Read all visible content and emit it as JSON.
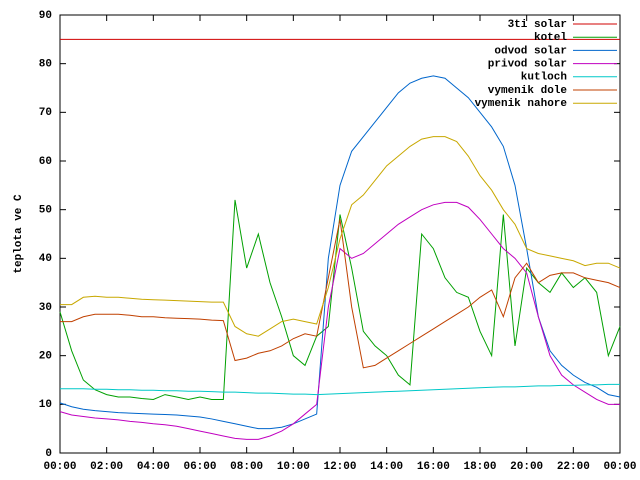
{
  "chart_data": {
    "type": "line",
    "y_label": "teplota ve C",
    "x": [
      0,
      0.5,
      1,
      1.5,
      2,
      2.5,
      3,
      3.5,
      4,
      4.5,
      5,
      5.5,
      6,
      6.5,
      7,
      7.5,
      8,
      8.5,
      9,
      9.5,
      10,
      10.5,
      11,
      11.5,
      12,
      12.5,
      13,
      13.5,
      14,
      14.5,
      15,
      15.5,
      16,
      16.5,
      17,
      17.5,
      18,
      18.5,
      19,
      19.5,
      20,
      20.5,
      21,
      21.5,
      22,
      22.5,
      23,
      23.5,
      24
    ],
    "xlim": [
      0,
      24
    ],
    "xticks": [
      {
        "value": 0,
        "label": "00:00"
      },
      {
        "value": 2,
        "label": "02:00"
      },
      {
        "value": 4,
        "label": "04:00"
      },
      {
        "value": 6,
        "label": "06:00"
      },
      {
        "value": 8,
        "label": "08:00"
      },
      {
        "value": 10,
        "label": "10:00"
      },
      {
        "value": 12,
        "label": "12:00"
      },
      {
        "value": 14,
        "label": "14:00"
      },
      {
        "value": 16,
        "label": "16:00"
      },
      {
        "value": 18,
        "label": "18:00"
      },
      {
        "value": 20,
        "label": "20:00"
      },
      {
        "value": 22,
        "label": "22:00"
      },
      {
        "value": 24,
        "label": "00:00"
      }
    ],
    "ylim": [
      0,
      90
    ],
    "yticks": [
      0,
      10,
      20,
      30,
      40,
      50,
      60,
      70,
      80,
      90
    ],
    "legend": "top-right",
    "series": [
      {
        "name": "3ti solar",
        "color": "#d00000",
        "values": [
          85,
          85,
          85,
          85,
          85,
          85,
          85,
          85,
          85,
          85,
          85,
          85,
          85,
          85,
          85,
          85,
          85,
          85,
          85,
          85,
          85,
          85,
          85,
          85,
          85,
          85,
          85,
          85,
          85,
          85,
          85,
          85,
          85,
          85,
          85,
          85,
          85,
          85,
          85,
          85,
          85,
          85,
          85,
          85,
          85,
          85,
          85,
          85,
          85
        ]
      },
      {
        "name": "kotel",
        "color": "#00a000",
        "values": [
          29,
          21,
          15,
          13,
          12,
          11.5,
          11.5,
          11.2,
          11,
          12,
          11.5,
          11,
          11.5,
          11,
          11,
          52,
          38,
          45,
          35,
          28,
          20,
          18,
          24,
          26,
          49,
          38,
          25,
          22,
          20,
          16,
          14,
          45,
          42,
          36,
          33,
          32,
          25,
          20,
          49,
          22,
          38,
          35,
          33,
          37,
          34,
          36,
          33,
          20,
          26
        ]
      },
      {
        "name": "odvod solar",
        "color": "#0066cc",
        "values": [
          10.3,
          9.5,
          9,
          8.7,
          8.5,
          8.3,
          8.2,
          8.1,
          8,
          7.9,
          7.8,
          7.6,
          7.4,
          7,
          6.5,
          6,
          5.5,
          5,
          5,
          5.3,
          6,
          7,
          8,
          40,
          55,
          62,
          65,
          68,
          71,
          74,
          76,
          77,
          77.5,
          77,
          75,
          73,
          70,
          67,
          63,
          55,
          42,
          28,
          21,
          18,
          16,
          14.5,
          13.5,
          12,
          11.5
        ]
      },
      {
        "name": "privod solar",
        "color": "#c000c0",
        "values": [
          8.5,
          7.8,
          7.5,
          7.2,
          7,
          6.8,
          6.5,
          6.3,
          6,
          5.8,
          5.5,
          5,
          4.5,
          4,
          3.5,
          3,
          2.8,
          2.8,
          3.5,
          4.5,
          6,
          8,
          10,
          30,
          42,
          40,
          41,
          43,
          45,
          47,
          48.5,
          50,
          51,
          51.5,
          51.5,
          50.5,
          48,
          45,
          42,
          40,
          37,
          28,
          20,
          16,
          14,
          12.5,
          11,
          10,
          10
        ]
      },
      {
        "name": "kutloch",
        "color": "#00c8c8",
        "values": [
          13.2,
          13.2,
          13.2,
          13.1,
          13.1,
          13,
          13,
          12.9,
          12.9,
          12.8,
          12.8,
          12.7,
          12.7,
          12.6,
          12.5,
          12.5,
          12.4,
          12.3,
          12.3,
          12.2,
          12.1,
          12.1,
          12,
          12.1,
          12.2,
          12.3,
          12.4,
          12.5,
          12.6,
          12.7,
          12.8,
          12.9,
          13,
          13.1,
          13.2,
          13.3,
          13.4,
          13.5,
          13.6,
          13.6,
          13.7,
          13.8,
          13.8,
          13.9,
          13.9,
          14,
          14,
          14.1,
          14.1
        ]
      },
      {
        "name": "vymenik dole",
        "color": "#c04000",
        "values": [
          27,
          27,
          28,
          28.5,
          28.5,
          28.5,
          28.3,
          28,
          28,
          27.8,
          27.7,
          27.6,
          27.5,
          27.3,
          27.2,
          19,
          19.5,
          20.5,
          21,
          22,
          23.5,
          24.5,
          24,
          36,
          48,
          30,
          17.5,
          18,
          19.5,
          21,
          22.5,
          24,
          25.5,
          27,
          28.5,
          30,
          32,
          33.5,
          28,
          36,
          39,
          35,
          36.5,
          37,
          37,
          36,
          35.5,
          35,
          34
        ]
      },
      {
        "name": "vymenik nahore",
        "color": "#c8a800",
        "values": [
          30.5,
          30.5,
          32,
          32.2,
          32,
          32,
          31.8,
          31.6,
          31.5,
          31.4,
          31.3,
          31.2,
          31.1,
          31,
          31,
          26,
          24.5,
          24,
          25.5,
          27,
          27.5,
          27,
          26.5,
          34,
          44,
          51,
          53,
          56,
          59,
          61,
          63,
          64.5,
          65,
          65,
          64,
          61,
          57,
          54,
          50,
          47,
          42,
          41,
          40.5,
          40,
          39.5,
          38.5,
          39,
          39,
          38
        ]
      }
    ]
  }
}
